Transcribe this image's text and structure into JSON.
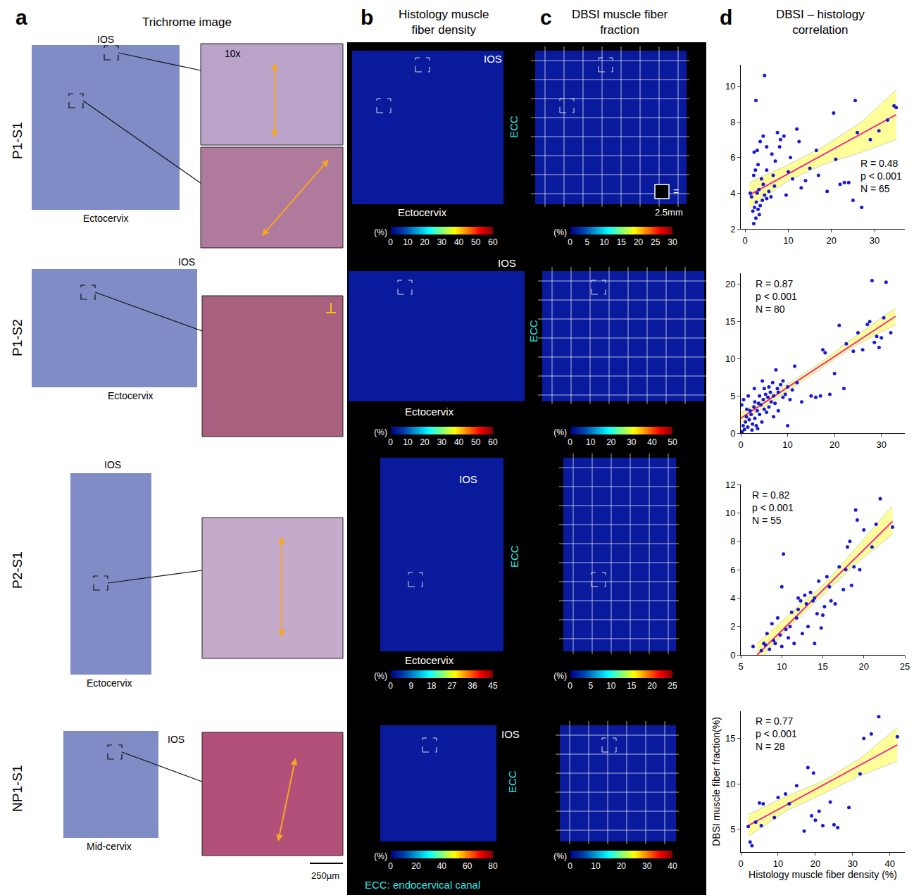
{
  "figure": {
    "panel_letters": [
      "a",
      "b",
      "c",
      "d"
    ],
    "panel_titles": [
      "Trichrome image",
      "Histology muscle fiber density",
      "DBSI muscle fiber fraction",
      "DBSI – histology correlation"
    ],
    "footnote": "ECC: endocervical canal",
    "scale_bar": "250µm",
    "rows": [
      {
        "sample": "P1-S1",
        "trichrome": {
          "overview_labels": [
            "IOS",
            "Ectocervix"
          ],
          "zoom_labels": [
            "10x"
          ]
        },
        "histology_map": {
          "labels": [
            "IOS",
            "ECC",
            "Ectocervix"
          ],
          "colorbar": {
            "range": [
              0,
              60
            ],
            "ticks": [
              0,
              10,
              20,
              30,
              40,
              50,
              60
            ],
            "unit": "(%)"
          }
        },
        "dbsi_map": {
          "labels": [],
          "grid_scale": [
            "=",
            "2.5mm"
          ],
          "colorbar": {
            "range": [
              0,
              30
            ],
            "ticks": [
              0,
              5,
              10,
              15,
              20,
              25,
              30
            ],
            "unit": "(%)"
          }
        }
      },
      {
        "sample": "P1-S2",
        "trichrome": {
          "overview_labels": [
            "IOS",
            "Ectocervix"
          ],
          "zoom_labels": []
        },
        "histology_map": {
          "labels": [
            "IOS",
            "Ectocervix"
          ],
          "colorbar": {
            "range": [
              0,
              60
            ],
            "ticks": [
              0,
              10,
              20,
              30,
              40,
              50,
              60
            ],
            "unit": "(%)"
          }
        },
        "dbsi_map": {
          "labels": [
            "ECC"
          ],
          "grid_scale": [],
          "colorbar": {
            "range": [
              0,
              50
            ],
            "ticks": [
              0,
              10,
              20,
              30,
              40,
              50
            ],
            "unit": "(%)"
          }
        }
      },
      {
        "sample": "P2-S1",
        "trichrome": {
          "overview_labels": [
            "IOS",
            "Ectocervix"
          ],
          "zoom_labels": []
        },
        "histology_map": {
          "labels": [
            "IOS",
            "ECC",
            "Ectocervix"
          ],
          "colorbar": {
            "range": [
              0,
              45
            ],
            "ticks": [
              0,
              9,
              18,
              27,
              36,
              45
            ],
            "unit": "(%)"
          }
        },
        "dbsi_map": {
          "labels": [],
          "grid_scale": [],
          "colorbar": {
            "range": [
              0,
              25
            ],
            "ticks": [
              0,
              5,
              10,
              15,
              20,
              25
            ],
            "unit": "(%)"
          }
        }
      },
      {
        "sample": "NP1-S1",
        "trichrome": {
          "overview_labels": [
            "IOS",
            "Mid-cervix"
          ],
          "zoom_labels": []
        },
        "histology_map": {
          "labels": [
            "IOS",
            "ECC"
          ],
          "colorbar": {
            "range": [
              0,
              80
            ],
            "ticks": [
              0,
              20,
              40,
              60,
              80
            ],
            "unit": "(%)"
          }
        },
        "dbsi_map": {
          "labels": [],
          "grid_scale": [],
          "colorbar": {
            "range": [
              0,
              40
            ],
            "ticks": [
              0,
              10,
              20,
              30,
              40
            ],
            "unit": "(%)"
          }
        }
      }
    ]
  },
  "chart_data": [
    {
      "type": "scatter",
      "marker": "circle",
      "color": "#1a1ad6",
      "x": [
        2,
        2.5,
        1.8,
        2.2,
        3,
        2.6,
        3.5,
        1.5,
        2.8,
        3.2,
        4,
        4.5,
        5,
        5.5,
        6,
        4.2,
        3.8,
        2,
        2.4,
        3,
        5,
        6.5,
        7,
        2.1,
        2.8,
        3.5,
        4.2,
        5,
        6.2,
        8,
        9,
        2.5,
        4.5,
        7.5,
        8.2,
        10,
        11,
        12,
        12.5,
        13,
        14,
        16.5,
        17,
        19,
        20.5,
        21,
        22,
        23,
        24,
        25,
        25.5,
        26,
        27,
        28,
        29,
        31,
        33,
        34.5,
        35,
        1.2,
        6.8,
        9.5,
        3.3,
        10.5,
        15
      ],
      "y": [
        2.3,
        2.6,
        3.0,
        3.2,
        3.1,
        3.5,
        3.3,
        3.8,
        4.0,
        4.2,
        3.6,
        3.9,
        3.7,
        4.1,
        3.8,
        4.5,
        4.8,
        5.0,
        5.3,
        5.6,
        5.3,
        5.0,
        5.8,
        6.3,
        6.4,
        6.9,
        7.2,
        6.6,
        6.2,
        6.6,
        7.2,
        9.2,
        10.6,
        7.4,
        7.0,
        5.2,
        4.8,
        7.6,
        6.9,
        4.3,
        4.7,
        6.4,
        5.0,
        4.1,
        8.5,
        5.9,
        4.5,
        4.6,
        4.6,
        3.6,
        9.2,
        7.4,
        3.2,
        4.5,
        7.0,
        7.5,
        8.1,
        8.9,
        8.8,
        4.0,
        4.4,
        3.9,
        2.8,
        6.0,
        5.4
      ],
      "fit": {
        "x": [
          1,
          35
        ],
        "y": [
          3.9,
          8.4
        ],
        "color": "#ff1493"
      },
      "band": {
        "x": [
          1,
          10,
          18,
          27,
          35
        ],
        "lower": [
          3.2,
          4.7,
          5.6,
          6.3,
          7.0
        ],
        "upper": [
          4.6,
          5.6,
          6.6,
          8.0,
          9.8
        ],
        "color": "#ffff99"
      },
      "stats": [
        "R = 0.48",
        "p < 0.001",
        "N = 65"
      ],
      "xlim": [
        -1,
        37
      ],
      "xticks": [
        0,
        10,
        20,
        30
      ],
      "ylim": [
        2,
        11.2
      ],
      "yticks": [
        2,
        4,
        6,
        8,
        10
      ]
    },
    {
      "type": "scatter",
      "marker": "circle",
      "color": "#1a1ad6",
      "x": [
        0.3,
        0.5,
        0.8,
        1,
        1.2,
        1.5,
        1.8,
        2,
        2.2,
        2.5,
        2.8,
        3,
        3,
        3.3,
        3.5,
        3.8,
        4,
        4,
        4.3,
        4.5,
        4.8,
        5,
        5,
        5.3,
        5.5,
        5.8,
        6,
        6,
        6.3,
        6.5,
        6.8,
        7,
        7,
        7.3,
        7.5,
        7.8,
        8,
        8,
        8.5,
        9,
        9,
        9.5,
        10,
        10,
        10.5,
        11,
        0.2,
        0.6,
        1.3,
        1.6,
        2.4,
        3.6,
        12,
        13,
        15,
        16,
        17,
        17.5,
        18,
        19,
        20,
        21,
        22,
        22.5,
        24,
        25,
        26,
        27,
        27.5,
        28,
        28.5,
        29,
        29.5,
        30,
        30.5,
        31,
        32,
        2.9,
        4.6,
        11.5
      ],
      "y": [
        0.2,
        1.0,
        0.5,
        1.5,
        2.2,
        0.8,
        1.8,
        3.0,
        2.5,
        1.2,
        3.5,
        2.0,
        4.2,
        1.0,
        3.0,
        4.0,
        2.5,
        5.0,
        3.8,
        1.5,
        4.5,
        3.2,
        6.0,
        5.2,
        2.8,
        4.8,
        6.2,
        3.5,
        5.5,
        4.2,
        6.8,
        5.0,
        2.2,
        4.0,
        8.5,
        6.0,
        5.5,
        3.0,
        6.5,
        4.8,
        7.0,
        5.2,
        6.2,
        1.0,
        4.5,
        5.8,
        3.8,
        4.5,
        3.2,
        5.0,
        0.4,
        0.6,
        6.8,
        4.2,
        5.0,
        4.8,
        5.0,
        11.2,
        10.8,
        5.2,
        8.0,
        14.5,
        6.0,
        12.0,
        11.0,
        13.5,
        11.2,
        14.6,
        15.0,
        20.5,
        12.2,
        13.0,
        11.5,
        12.8,
        15.5,
        20.3,
        13.5,
        6.0,
        7.0,
        9.0
      ],
      "fit": {
        "x": [
          0,
          33
        ],
        "y": [
          2.0,
          15.7
        ],
        "color": "#ff1493"
      },
      "band": {
        "x": [
          0,
          8,
          16,
          24,
          33
        ],
        "lower": [
          1.3,
          4.8,
          8.2,
          11.6,
          14.6
        ],
        "upper": [
          2.7,
          5.8,
          9.0,
          12.8,
          16.8
        ],
        "color": "#ffff99"
      },
      "stats": [
        "R = 0.87",
        "p < 0.001",
        "N = 80"
      ],
      "xlim": [
        0,
        35
      ],
      "xticks": [
        0,
        10,
        20,
        30
      ],
      "ylim": [
        0,
        21.5
      ],
      "yticks": [
        0,
        5,
        10,
        15,
        20
      ]
    },
    {
      "type": "scatter",
      "marker": "circle",
      "color": "#1a1ad6",
      "x": [
        6.5,
        7.5,
        7.8,
        8,
        8.2,
        8.5,
        8.8,
        9,
        9.2,
        9.5,
        9.8,
        10,
        10,
        10.2,
        10.5,
        10.8,
        11,
        11.2,
        11.5,
        11.8,
        12,
        12,
        12.3,
        12.5,
        12.8,
        13,
        13.2,
        13.5,
        13.8,
        14,
        14,
        14.3,
        14.5,
        14.8,
        15,
        15.2,
        15.5,
        15.8,
        16,
        16.5,
        17,
        17.5,
        17.8,
        18,
        18.3,
        18.5,
        18.8,
        19,
        19.2,
        19.5,
        20,
        21,
        21.5,
        22,
        23.5
      ],
      "y": [
        0.6,
        0.3,
        0.8,
        0.7,
        1.5,
        0.4,
        2.2,
        1.0,
        0.8,
        2.6,
        1.4,
        0.6,
        4.8,
        7.1,
        1.8,
        1.2,
        2.0,
        3.0,
        0.8,
        2.6,
        3.2,
        4.0,
        3.8,
        1.5,
        4.2,
        3.6,
        2.0,
        4.4,
        3.8,
        4.0,
        0.8,
        2.9,
        5.2,
        1.9,
        2.8,
        3.4,
        5.5,
        4.8,
        3.8,
        3.6,
        6.2,
        4.6,
        6.0,
        7.6,
        8.0,
        4.9,
        6.2,
        10.2,
        9.5,
        6.0,
        8.8,
        7.6,
        9.2,
        11.0,
        9.0
      ],
      "fit": {
        "x": [
          7,
          23.5
        ],
        "y": [
          0,
          9.4
        ],
        "color": "#ff1493"
      },
      "band": {
        "x": [
          7,
          11,
          15,
          19,
          23.5
        ],
        "lower": [
          -0.5,
          2.0,
          4.2,
          6.4,
          8.5
        ],
        "upper": [
          0.8,
          2.9,
          4.9,
          7.5,
          10.5
        ],
        "color": "#ffff99"
      },
      "stats": [
        "R = 0.82",
        "p < 0.001",
        "N = 55"
      ],
      "xlim": [
        5,
        25
      ],
      "xticks": [
        5,
        10,
        15,
        20,
        25
      ],
      "ylim": [
        0,
        12
      ],
      "yticks": [
        0,
        2,
        4,
        6,
        8,
        10,
        12
      ]
    },
    {
      "type": "scatter",
      "marker": "circle",
      "color": "#1a1ad6",
      "x": [
        2,
        2.5,
        3,
        4,
        5,
        5.5,
        6,
        9,
        10,
        12,
        13,
        15,
        17,
        18,
        19,
        19.5,
        20,
        21,
        22,
        24,
        25,
        26,
        29,
        32,
        33,
        35,
        37,
        42
      ],
      "y": [
        5.3,
        3.6,
        3.2,
        5.8,
        7.9,
        5.4,
        7.8,
        6.3,
        8.5,
        8.9,
        7.8,
        9.8,
        4.8,
        11.8,
        6.5,
        11.2,
        6.0,
        7.0,
        5.4,
        8.0,
        5.5,
        5.2,
        7.4,
        11.1,
        15.0,
        15.5,
        17.4,
        15.2
      ],
      "fit": {
        "x": [
          2,
          42
        ],
        "y": [
          5.4,
          14.3
        ],
        "color": "#ff1493"
      },
      "band": {
        "x": [
          2,
          12,
          22,
          32,
          42
        ],
        "lower": [
          4.2,
          7.0,
          8.9,
          10.9,
          12.5
        ],
        "upper": [
          6.6,
          8.6,
          10.3,
          12.8,
          16.2
        ],
        "color": "#ffff99"
      },
      "stats": [
        "R = 0.77",
        "p < 0.001",
        "N = 28"
      ],
      "xlabel": "Histology muscle fiber density (%)",
      "ylabel": "DBSI muscle fiber fraction(%)",
      "xlim": [
        0,
        44
      ],
      "xticks": [
        0,
        10,
        20,
        30,
        40
      ],
      "ylim": [
        2.5,
        18
      ],
      "yticks": [
        5,
        10,
        15
      ]
    }
  ]
}
